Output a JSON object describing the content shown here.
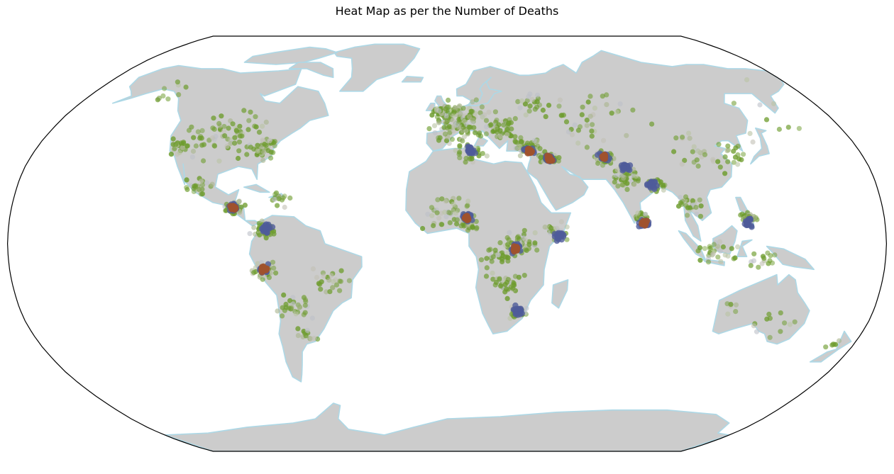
{
  "title": "Heat Map as per the Number of Deaths",
  "map": {
    "projection": "robinson",
    "colors": {
      "ocean": "#ffffff",
      "land": "#cccccc",
      "coastline": "#add8e6",
      "frame": "#000000",
      "low": "#6e9c2e",
      "mid": "#4f5b9a",
      "high": "#a0522d"
    }
  },
  "chart_data": {
    "type": "heatmap",
    "title": "Heat Map as per the Number of Deaths",
    "color_scale": [
      "#6e9c2e",
      "#4f5b9a",
      "#a0522d"
    ],
    "hotspots": [
      {
        "lon": -88,
        "lat": 14,
        "level": "high"
      },
      {
        "lon": -74,
        "lat": 6,
        "level": "mid"
      },
      {
        "lon": -75,
        "lat": -10,
        "level": "high"
      },
      {
        "lon": 8,
        "lat": 10,
        "level": "high"
      },
      {
        "lon": 36,
        "lat": 36,
        "level": "high"
      },
      {
        "lon": 44,
        "lat": 33,
        "level": "high"
      },
      {
        "lon": 68,
        "lat": 34,
        "level": "high"
      },
      {
        "lon": 76,
        "lat": 30,
        "level": "mid"
      },
      {
        "lon": 86,
        "lat": 23,
        "level": "mid"
      },
      {
        "lon": 81,
        "lat": 8,
        "level": "high"
      },
      {
        "lon": 124,
        "lat": 8,
        "level": "mid"
      },
      {
        "lon": 46,
        "lat": 3,
        "level": "mid"
      },
      {
        "lon": 28,
        "lat": -2,
        "level": "high"
      },
      {
        "lon": 30,
        "lat": -26,
        "level": "mid"
      },
      {
        "lon": 10,
        "lat": 36,
        "level": "mid"
      }
    ]
  }
}
